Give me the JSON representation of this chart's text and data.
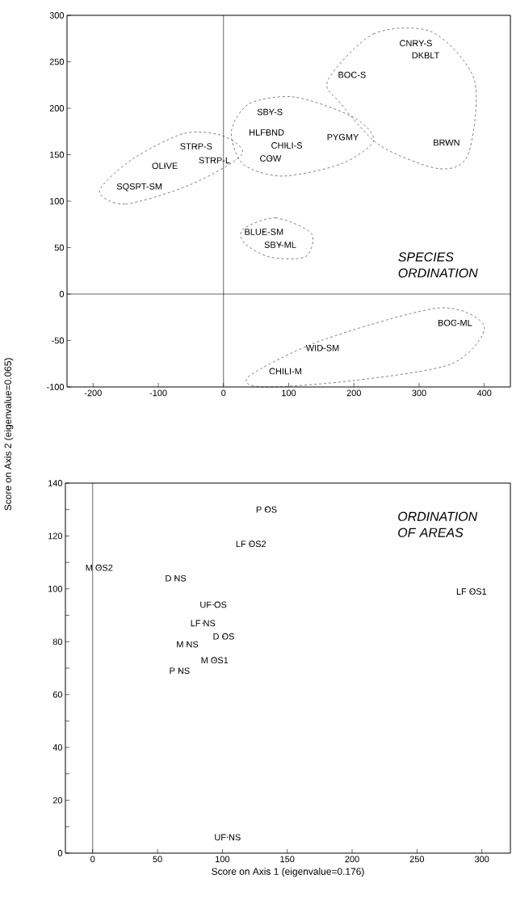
{
  "chart_data": [
    {
      "type": "scatter",
      "annotations": [
        "SPECIES ORDINATION"
      ],
      "ylabel": "Score on Axis 2 (eigenvalue=0.065)",
      "marker": "circle",
      "xlim": [
        -240,
        440
      ],
      "ylim": [
        -100,
        300
      ],
      "xticks": [
        -200,
        -100,
        0,
        100,
        200,
        300,
        400
      ],
      "yticks": [
        -100,
        -50,
        0,
        50,
        100,
        150,
        200,
        250,
        300
      ],
      "ref_lines": [
        {
          "axis": "x",
          "value": 0,
          "color": "#000000"
        },
        {
          "axis": "y",
          "value": 0,
          "color": "#000000"
        }
      ],
      "series": [
        {
          "color": "#000000",
          "x": [
            295,
            310,
            197,
            71,
            66,
            97,
            183,
            342,
            72,
            -42,
            -14,
            -90,
            -129,
            62,
            87,
            355,
            152,
            95
          ],
          "values": [
            270,
            257,
            236,
            196,
            174,
            160,
            169,
            163,
            146,
            159,
            144,
            138,
            115,
            67,
            53,
            -31,
            -58,
            -83
          ],
          "value_labels": [
            "CNRY-S",
            "DKBLT",
            "BOC-S",
            "SBY-S",
            "HLFBND",
            "CHILI-S",
            "PYGMY",
            "BRWN",
            "COW",
            "STRP-S",
            "STRP-L",
            "OLIVE",
            "SQSPT-SM",
            "BLUE-SM",
            "SBY-ML",
            "BOC-ML",
            "WID-SM",
            "CHILI-M"
          ]
        }
      ]
    },
    {
      "type": "scatter",
      "annotations": [
        "ORDINATION OF AREAS"
      ],
      "xlabel": "Score on Axis 1 (eigenvalue=0.176)",
      "marker": "circle",
      "xlim": [
        -21,
        322
      ],
      "ylim": [
        0,
        140
      ],
      "xticks": [
        0,
        50,
        100,
        150,
        200,
        250,
        300
      ],
      "yticks": [
        0,
        {
          "value": 10,
          "label": null
        },
        20,
        {
          "value": 30,
          "label": null
        },
        40,
        {
          "value": 50,
          "label": null
        },
        60,
        {
          "value": 70,
          "label": null
        },
        80,
        {
          "value": 90,
          "label": null
        },
        100,
        {
          "value": 110,
          "label": null
        },
        120,
        {
          "value": 130,
          "label": null
        },
        140
      ],
      "ref_lines": [
        {
          "axis": "x",
          "value": 0,
          "color": "#000000"
        }
      ],
      "series": [
        {
          "color": "#000000",
          "x": [
            134,
            122,
            5,
            64,
            292,
            93,
            85,
            101,
            73,
            94,
            67,
            104
          ],
          "values": [
            130,
            117,
            108,
            104,
            99,
            94,
            87,
            82,
            79,
            73,
            69,
            6
          ],
          "value_labels": [
            "P OS",
            "LF OS2",
            "M OS2",
            "D NS",
            "LF OS1",
            "UF OS",
            "LF NS",
            "D OS",
            "M NS",
            "M OS1",
            "P NS",
            "UF NS"
          ]
        }
      ]
    }
  ]
}
